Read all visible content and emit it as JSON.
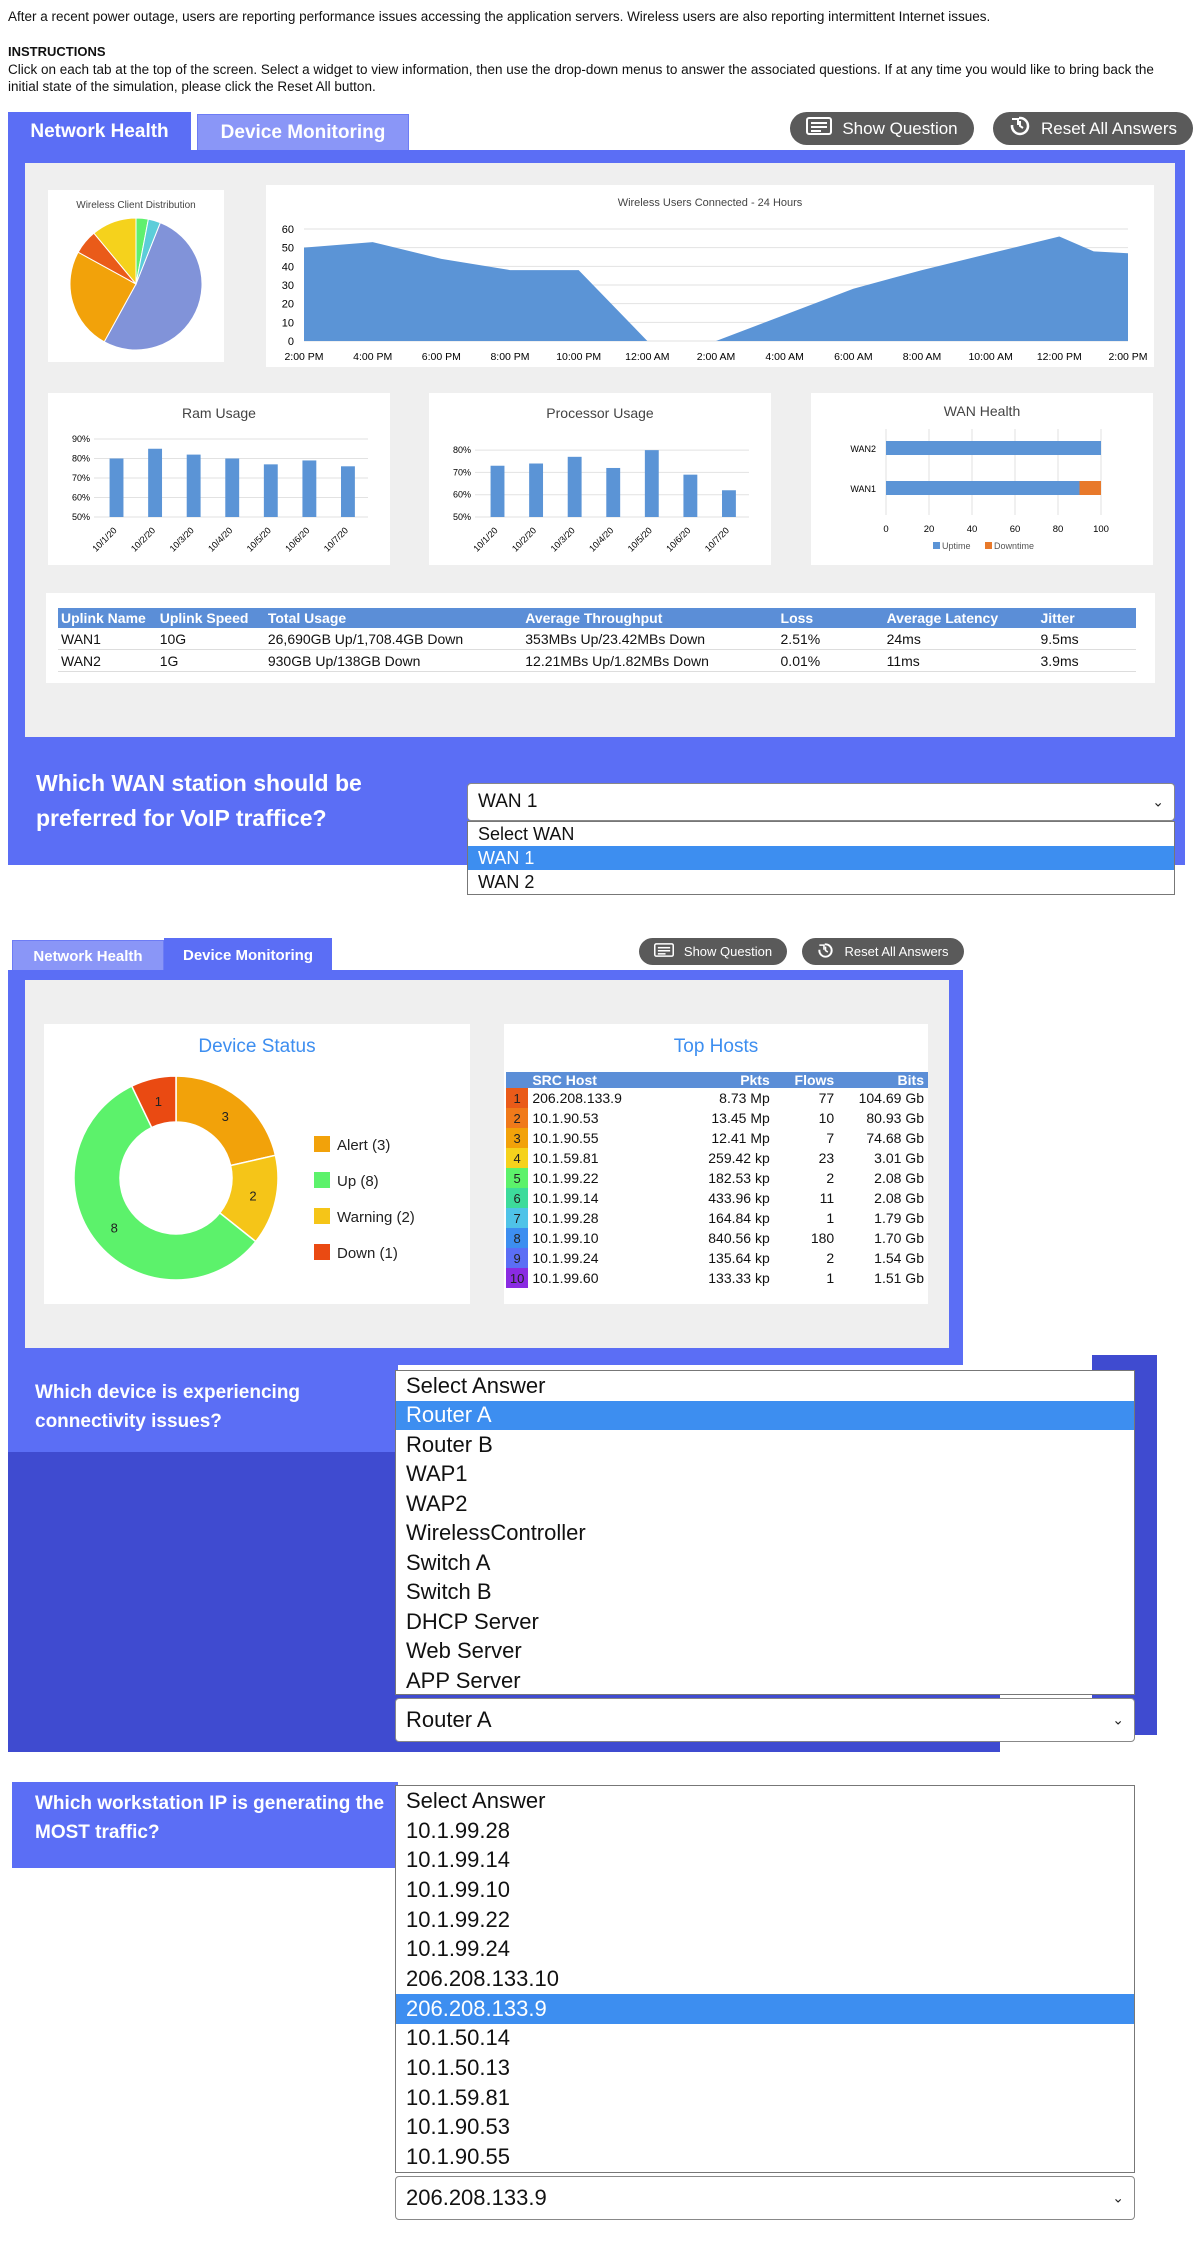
{
  "intro": "After a recent power outage, users are reporting performance issues accessing the application servers. Wireless users are also reporting intermittent Internet issues.",
  "instructions_heading": "INSTRUCTIONS",
  "instructions": "Click on each tab at the top of the screen. Select a widget to view information, then use the drop-down menus to answer the associated questions. If at any time you would like to bring back the initial state of the simulation, please click the Reset All button.",
  "tabs": {
    "network_health": "Network Health",
    "device_monitoring": "Device Monitoring"
  },
  "buttons": {
    "show_question": "Show Question",
    "reset_all": "Reset All Answers"
  },
  "icons": {
    "show_question": "question-list-icon",
    "reset_all": "reset-icon"
  },
  "colors": {
    "panel": "#5b6ef5",
    "tab_inactive": "#8a96f7",
    "chart_blue": "#5b8ed7",
    "highlight": "#3d8ef0",
    "downtime": "#e8792b"
  },
  "network_health": {
    "wireless_pie": {
      "title": "Wireless Client Distribution",
      "chart_data": {
        "type": "pie",
        "values": [
          52,
          25,
          6,
          11,
          3,
          3
        ],
        "colors": [
          "#8193d9",
          "#f2a20a",
          "#ea5b19",
          "#f5d21c",
          "#5ff06f",
          "#5ccdd9"
        ]
      }
    },
    "wireless_users": {
      "title": "Wireless Users Connected - 24 Hours",
      "chart_data": {
        "type": "area",
        "x": [
          "2:00 PM",
          "4:00 PM",
          "6:00 PM",
          "8:00 PM",
          "10:00 PM",
          "12:00 AM",
          "2:00 AM",
          "4:00 AM",
          "6:00 AM",
          "8:00 AM",
          "10:00 AM",
          "12:00 PM",
          "2:00 PM"
        ],
        "points": [
          [
            0,
            50
          ],
          [
            1,
            53
          ],
          [
            2,
            44
          ],
          [
            3,
            38
          ],
          [
            4,
            38
          ],
          [
            5,
            0
          ],
          [
            6,
            0
          ],
          [
            7,
            14
          ],
          [
            8,
            28
          ],
          [
            9,
            38
          ],
          [
            10,
            47
          ],
          [
            11,
            56
          ],
          [
            11.5,
            48
          ],
          [
            12,
            47
          ]
        ],
        "yticks": [
          0,
          10,
          20,
          30,
          40,
          50,
          60
        ],
        "ylim": [
          0,
          60
        ]
      }
    },
    "ram_usage": {
      "title": "Ram Usage",
      "chart_data": {
        "type": "bar",
        "categories": [
          "10/1/20",
          "10/2/20",
          "10/3/20",
          "10/4/20",
          "10/5/20",
          "10/6/20",
          "10/7/20"
        ],
        "values": [
          80,
          85,
          82,
          80,
          77,
          79,
          76
        ],
        "yticks": [
          "50%",
          "60%",
          "70%",
          "80%",
          "90%"
        ],
        "ylim": [
          50,
          90
        ]
      }
    },
    "processor_usage": {
      "title": "Processor Usage",
      "chart_data": {
        "type": "bar",
        "categories": [
          "10/1/20",
          "10/2/20",
          "10/3/20",
          "10/4/20",
          "10/5/20",
          "10/6/20",
          "10/7/20"
        ],
        "values": [
          73,
          74,
          77,
          72,
          80,
          69,
          62
        ],
        "yticks": [
          "50%",
          "60%",
          "70%",
          "80%"
        ],
        "ylim": [
          50,
          85
        ]
      }
    },
    "wan_health": {
      "title": "WAN Health",
      "chart_data": {
        "type": "bar",
        "orientation": "horizontal",
        "categories": [
          "WAN2",
          "WAN1"
        ],
        "series": [
          {
            "name": "Uptime",
            "values": [
              100,
              90
            ]
          },
          {
            "name": "Downtime",
            "values": [
              0,
              10
            ]
          }
        ],
        "xticks": [
          0,
          20,
          40,
          60,
          80,
          100
        ],
        "xlim": [
          0,
          100
        ],
        "legend": "bottom"
      }
    },
    "uplinks": {
      "headers": [
        "Uplink Name",
        "Uplink Speed",
        "Total Usage",
        "Average Throughput",
        "Loss",
        "Average Latency",
        "Jitter"
      ],
      "rows": [
        [
          "WAN1",
          "10G",
          "26,690GB Up/1,708.4GB Down",
          "353MBs Up/23.42MBs Down",
          "2.51%",
          "24ms",
          "9.5ms"
        ],
        [
          "WAN2",
          "1G",
          "930GB Up/138GB Down",
          "12.21MBs Up/1.82MBs Down",
          "0.01%",
          "11ms",
          "3.9ms"
        ]
      ]
    },
    "question": "Which WAN station should be preferred for VoIP traffice?",
    "selected": "WAN 1",
    "options": [
      "Select WAN",
      "WAN 1",
      "WAN 2"
    ]
  },
  "device_monitoring": {
    "device_status": {
      "title": "Device Status",
      "chart_data": {
        "type": "pie",
        "style": "donut",
        "categories": [
          "Alert",
          "Warning",
          "Up",
          "Down"
        ],
        "values": [
          3,
          2,
          8,
          1
        ],
        "colors": [
          "#f2a20a",
          "#f5c518",
          "#5cf26b",
          "#ea4a12"
        ],
        "legend": "right"
      },
      "legend": [
        "Alert (3)",
        "Up (8)",
        "Warning (2)",
        "Down (1)"
      ],
      "legend_colors": [
        "#f2a20a",
        "#5cf26b",
        "#f5c518",
        "#ea4a12"
      ]
    },
    "top_hosts": {
      "title": "Top Hosts",
      "headers": [
        "SRC Host",
        "Pkts",
        "Flows",
        "Bits"
      ],
      "rank_colors": [
        "#ea5b19",
        "#f07a1a",
        "#f2a20a",
        "#f5d21c",
        "#5cf26b",
        "#3ddb9b",
        "#4fc3e8",
        "#3d8ef0",
        "#5b6ef5",
        "#8a2be2"
      ],
      "rows": [
        [
          "1",
          "206.208.133.9",
          "8.73 Mp",
          "77",
          "104.69 Gb"
        ],
        [
          "2",
          "10.1.90.53",
          "13.45 Mp",
          "10",
          "80.93 Gb"
        ],
        [
          "3",
          "10.1.90.55",
          "12.41 Mp",
          "7",
          "74.68 Gb"
        ],
        [
          "4",
          "10.1.59.81",
          "259.42 kp",
          "23",
          "3.01 Gb"
        ],
        [
          "5",
          "10.1.99.22",
          "182.53 kp",
          "2",
          "2.08 Gb"
        ],
        [
          "6",
          "10.1.99.14",
          "433.96 kp",
          "11",
          "2.08 Gb"
        ],
        [
          "7",
          "10.1.99.28",
          "164.84 kp",
          "1",
          "1.79 Gb"
        ],
        [
          "8",
          "10.1.99.10",
          "840.56 kp",
          "180",
          "1.70 Gb"
        ],
        [
          "9",
          "10.1.99.24",
          "135.64 kp",
          "2",
          "1.54 Gb"
        ],
        [
          "10",
          "10.1.99.60",
          "133.33 kp",
          "1",
          "1.51 Gb"
        ]
      ]
    },
    "q1": "Which device is experiencing connectivity issues?",
    "q1_options": [
      "Select Answer",
      "Router A",
      "Router B",
      "WAP1",
      "WAP2",
      "WirelessController",
      "Switch A",
      "Switch B",
      "DHCP Server",
      "Web Server",
      "APP Server"
    ],
    "q1_selected": "Router A",
    "q2": "Which workstation IP is generating the MOST traffic?",
    "q2_options": [
      "Select Answer",
      "10.1.99.28",
      "10.1.99.14",
      "10.1.99.10",
      "10.1.99.22",
      "10.1.99.24",
      "206.208.133.10",
      "206.208.133.9",
      "10.1.50.14",
      "10.1.50.13",
      "10.1.59.81",
      "10.1.90.53",
      "10.1.90.55"
    ],
    "q2_selected": "206.208.133.9"
  }
}
